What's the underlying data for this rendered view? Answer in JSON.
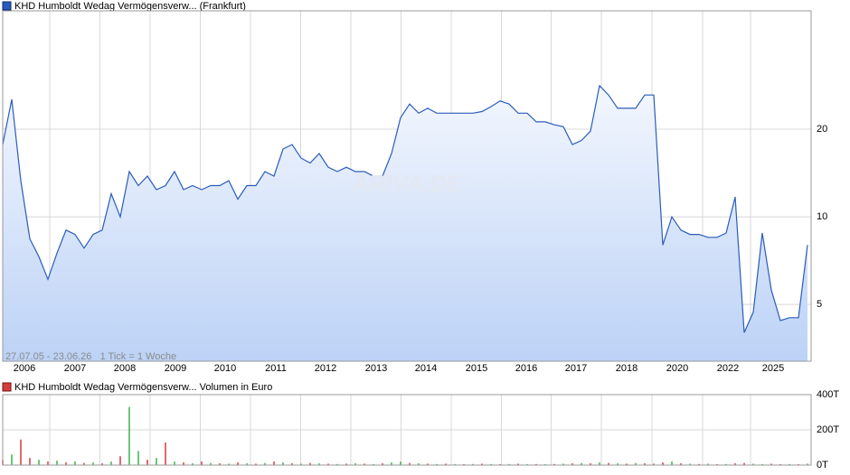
{
  "chart_data": [
    {
      "type": "line",
      "legend": "KHD Humboldt Wedag Vermögensverw... (Frankfurt)",
      "info": "27.07.05 - 23.06.26   1 Tick = 1 Woche",
      "watermark": "ARIVA.DE",
      "color": "#2a5cba",
      "log_scale": true,
      "grid": true,
      "x": [
        0,
        1,
        2,
        3,
        4,
        5,
        6,
        7,
        8,
        9,
        10,
        11,
        12,
        13,
        14,
        15,
        16,
        17,
        18,
        19,
        20,
        21,
        22,
        23,
        24,
        25,
        26,
        27,
        28,
        29,
        30,
        31,
        32,
        33,
        34,
        35,
        36,
        37,
        38,
        39,
        40,
        41,
        42,
        43,
        44,
        45,
        46,
        47,
        48,
        49,
        50,
        51,
        52,
        53,
        54,
        55,
        56,
        57,
        58,
        59,
        60,
        61,
        62,
        63,
        64,
        65,
        66,
        67,
        68,
        69,
        70,
        71,
        72,
        73,
        74,
        75,
        76,
        77,
        78,
        79,
        80,
        81,
        82,
        83,
        84,
        85,
        86,
        87,
        88,
        89
      ],
      "values": [
        17.7,
        25.3,
        13.3,
        8.4,
        7.3,
        6.1,
        7.5,
        9.0,
        8.7,
        7.8,
        8.7,
        9.0,
        12.0,
        10.0,
        14.3,
        12.8,
        13.8,
        12.4,
        12.8,
        14.3,
        12.4,
        12.8,
        12.4,
        12.8,
        12.8,
        13.3,
        11.5,
        12.8,
        12.8,
        14.3,
        13.8,
        17.1,
        17.7,
        15.9,
        15.3,
        16.5,
        14.8,
        14.3,
        14.8,
        14.3,
        14.3,
        13.8,
        13.8,
        16.5,
        21.9,
        24.4,
        22.7,
        23.6,
        22.7,
        22.7,
        22.7,
        22.7,
        22.7,
        23.0,
        23.9,
        25.0,
        24.4,
        22.7,
        22.7,
        21.2,
        21.2,
        20.7,
        20.4,
        17.7,
        18.3,
        19.7,
        28.2,
        26.2,
        23.6,
        23.6,
        23.6,
        26.2,
        26.2,
        8.0,
        10.0,
        9.0,
        8.7,
        8.7,
        8.5,
        8.5,
        8.8,
        11.7,
        4.0,
        4.7,
        8.8,
        5.6,
        4.4,
        4.5,
        4.5,
        8.0
      ],
      "xlim": [
        0,
        89.4
      ],
      "xticks": [
        {
          "value": 2.4,
          "label": "2006"
        },
        {
          "value": 8.0,
          "label": "2007"
        },
        {
          "value": 13.5,
          "label": "2008"
        },
        {
          "value": 19.1,
          "label": "2009"
        },
        {
          "value": 24.6,
          "label": "2010"
        },
        {
          "value": 30.2,
          "label": "2011"
        },
        {
          "value": 35.7,
          "label": "2012"
        },
        {
          "value": 41.3,
          "label": "2013"
        },
        {
          "value": 46.8,
          "label": "2014"
        },
        {
          "value": 52.4,
          "label": "2015"
        },
        {
          "value": 57.9,
          "label": "2016"
        },
        {
          "value": 63.4,
          "label": "2017"
        },
        {
          "value": 69.0,
          "label": "2018"
        },
        {
          "value": 74.6,
          "label": "2020"
        },
        {
          "value": 80.2,
          "label": "2022"
        },
        {
          "value": 85.2,
          "label": "2025"
        }
      ],
      "ylim": [
        3.19,
        51
      ],
      "yticks": [
        5,
        10,
        20
      ]
    },
    {
      "type": "bar",
      "legend": "KHD Humboldt Wedag Vermögensverw... Volumen in Euro",
      "grid": true,
      "x": [
        0,
        1,
        2,
        3,
        4,
        5,
        6,
        7,
        8,
        9,
        10,
        11,
        12,
        13,
        14,
        15,
        16,
        17,
        18,
        19,
        20,
        21,
        22,
        23,
        24,
        25,
        26,
        27,
        28,
        29,
        30,
        31,
        32,
        33,
        34,
        35,
        36,
        37,
        38,
        39,
        40,
        41,
        42,
        43,
        44,
        45,
        46,
        47,
        48,
        49,
        50,
        51,
        52,
        53,
        54,
        55,
        56,
        57,
        58,
        59,
        60,
        61,
        62,
        63,
        64,
        65,
        66,
        67,
        68,
        69,
        70,
        71,
        72,
        73,
        74,
        75,
        76,
        77,
        78,
        79,
        80,
        81,
        82,
        83,
        84,
        85,
        86,
        87,
        88,
        89
      ],
      "values": [
        30000,
        60000,
        145000,
        40000,
        30000,
        20000,
        25000,
        15000,
        20000,
        12000,
        15000,
        10000,
        20000,
        50000,
        330000,
        80000,
        30000,
        40000,
        128000,
        20000,
        15000,
        10000,
        20000,
        12000,
        10000,
        8000,
        15000,
        10000,
        8000,
        12000,
        20000,
        15000,
        10000,
        8000,
        12000,
        10000,
        8000,
        6000,
        8000,
        10000,
        8000,
        6000,
        10000,
        15000,
        20000,
        12000,
        10000,
        8000,
        6000,
        8000,
        6000,
        5000,
        6000,
        8000,
        6000,
        5000,
        6000,
        8000,
        5000,
        6000,
        5000,
        6000,
        8000,
        10000,
        12000,
        10000,
        15000,
        12000,
        10000,
        8000,
        12000,
        10000,
        8000,
        15000,
        20000,
        10000,
        8000,
        6000,
        8000,
        5000,
        6000,
        10000,
        12000,
        8000,
        6000,
        8000,
        5000,
        6000,
        5000,
        8000
      ],
      "colors": [
        "#d43b3b",
        "#3cb44b",
        "#d43b3b",
        "#d43b3b",
        "#3cb44b",
        "#d43b3b",
        "#3cb44b",
        "#d43b3b",
        "#3cb44b",
        "#d43b3b",
        "#3cb44b",
        "#d43b3b",
        "#3cb44b",
        "#d43b3b",
        "#3cb44b",
        "#3cb44b",
        "#d43b3b",
        "#3cb44b",
        "#d43b3b",
        "#3cb44b",
        "#d43b3b",
        "#3cb44b",
        "#d43b3b",
        "#3cb44b",
        "#d43b3b",
        "#3cb44b",
        "#d43b3b",
        "#3cb44b",
        "#d43b3b",
        "#3cb44b",
        "#d43b3b",
        "#3cb44b",
        "#d43b3b",
        "#3cb44b",
        "#d43b3b",
        "#3cb44b",
        "#d43b3b",
        "#3cb44b",
        "#d43b3b",
        "#3cb44b",
        "#d43b3b",
        "#3cb44b",
        "#d43b3b",
        "#3cb44b",
        "#3cb44b",
        "#d43b3b",
        "#3cb44b",
        "#d43b3b",
        "#3cb44b",
        "#d43b3b",
        "#3cb44b",
        "#d43b3b",
        "#3cb44b",
        "#d43b3b",
        "#3cb44b",
        "#d43b3b",
        "#3cb44b",
        "#d43b3b",
        "#3cb44b",
        "#d43b3b",
        "#3cb44b",
        "#d43b3b",
        "#3cb44b",
        "#d43b3b",
        "#3cb44b",
        "#d43b3b",
        "#3cb44b",
        "#d43b3b",
        "#3cb44b",
        "#d43b3b",
        "#3cb44b",
        "#d43b3b",
        "#d43b3b",
        "#d43b3b",
        "#3cb44b",
        "#d43b3b",
        "#3cb44b",
        "#d43b3b",
        "#3cb44b",
        "#d43b3b",
        "#3cb44b",
        "#d43b3b",
        "#d43b3b",
        "#3cb44b",
        "#3cb44b",
        "#d43b3b",
        "#d43b3b",
        "#3cb44b",
        "#d43b3b",
        "#3cb44b"
      ],
      "legend_color": "#d43b3b",
      "xlim": [
        0,
        89.4
      ],
      "ylim": [
        0,
        400000
      ],
      "yticks": [
        {
          "value": 0,
          "label": "0T"
        },
        {
          "value": 200000,
          "label": "200T"
        },
        {
          "value": 400000,
          "label": "400T"
        }
      ]
    }
  ]
}
